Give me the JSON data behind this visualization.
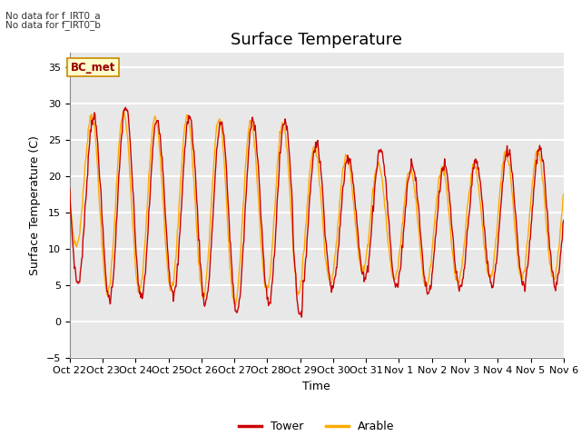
{
  "title": "Surface Temperature",
  "ylabel": "Surface Temperature (C)",
  "xlabel": "Time",
  "ylim": [
    -5,
    37
  ],
  "yticks": [
    -5,
    0,
    5,
    10,
    15,
    20,
    25,
    30,
    35
  ],
  "xtick_labels": [
    "Oct 22",
    "Oct 23",
    "Oct 24",
    "Oct 25",
    "Oct 26",
    "Oct 27",
    "Oct 28",
    "Oct 29",
    "Oct 30",
    "Oct 31",
    "Nov 1",
    "Nov 2",
    "Nov 3",
    "Nov 4",
    "Nov 5",
    "Nov 6"
  ],
  "tower_color": "#cc0000",
  "arable_color": "#ffaa00",
  "legend_labels": [
    "Tower",
    "Arable"
  ],
  "text_no_data_a": "No data for f_IRT0_a",
  "text_no_data_b": "No data for f_IRT0_b",
  "bc_met_label": "BC_met",
  "bc_met_bg": "#ffffcc",
  "bc_met_border": "#cc8800",
  "bc_met_text": "#990000",
  "figure_bg": "#ffffff",
  "plot_bg": "#e8e8e8",
  "grid_color": "#ffffff",
  "title_fontsize": 13,
  "label_fontsize": 9,
  "tick_fontsize": 8,
  "n_days": 15.5,
  "tower_peaks": [
    29,
    28,
    30,
    27,
    28.5,
    27,
    28,
    27.5,
    23.5,
    22.5,
    24,
    21,
    21.5,
    22,
    24,
    23.5
  ],
  "tower_troughs": [
    6,
    3,
    3,
    3.5,
    3,
    1,
    2,
    3.5,
    4,
    6,
    5,
    4,
    4,
    5,
    5,
    5
  ],
  "arable_peaks": [
    29,
    28,
    29,
    27.5,
    28.5,
    27.5,
    27.5,
    27,
    22.5,
    23,
    21,
    21,
    21,
    21.5,
    24,
    23
  ],
  "arable_troughs": [
    12,
    4,
    4,
    4.5,
    4,
    2,
    4,
    5,
    5,
    7,
    6,
    5,
    5,
    6,
    6,
    6
  ]
}
